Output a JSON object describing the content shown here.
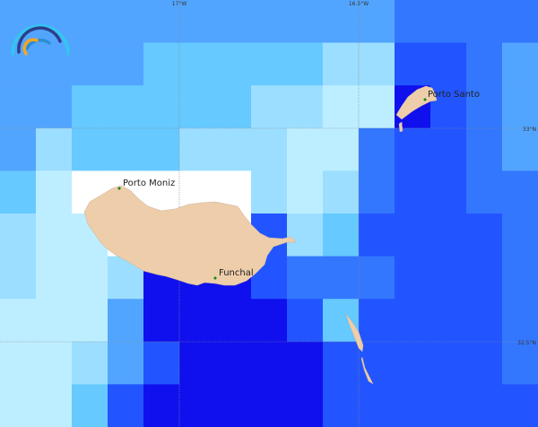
{
  "palette": {
    "A": "#52a5ff",
    "B": "#66c9ff",
    "C": "#9cdeff",
    "D": "#bdeeff",
    "W": "#ffffff",
    "E": "#3377ff",
    "F": "#2255ff",
    "G": "#1010ee"
  },
  "grid": [
    "AAAAAAAAAAAEEEE",
    "AAAABBBBBCCFFEA",
    "AABBBBBCCDDGFEA",
    "ACBBBCCCDDEFFEA",
    "BDWWWWWCDCEFFEE",
    "CDDWWWWFCBFFFFE",
    "CDDCGGGFEEEFFFE",
    "DDDAGGGGFBFFFFE",
    "DDCAFGGGGFFFFFE",
    "DDBFGGGGGFFFFFF"
  ],
  "land_color": "#eecdaa",
  "point_color": "#0a8a0a",
  "gridlines": {
    "lon_labels": [
      "17°W",
      "16.5°W"
    ],
    "lat_labels": [
      "33°N",
      "32.5°N"
    ]
  },
  "places": [
    {
      "name": "Porto Moniz"
    },
    {
      "name": "Funchal"
    },
    {
      "name": "Porto Santo"
    }
  ],
  "logo": {
    "icon": "rainbow-arc-logo"
  }
}
